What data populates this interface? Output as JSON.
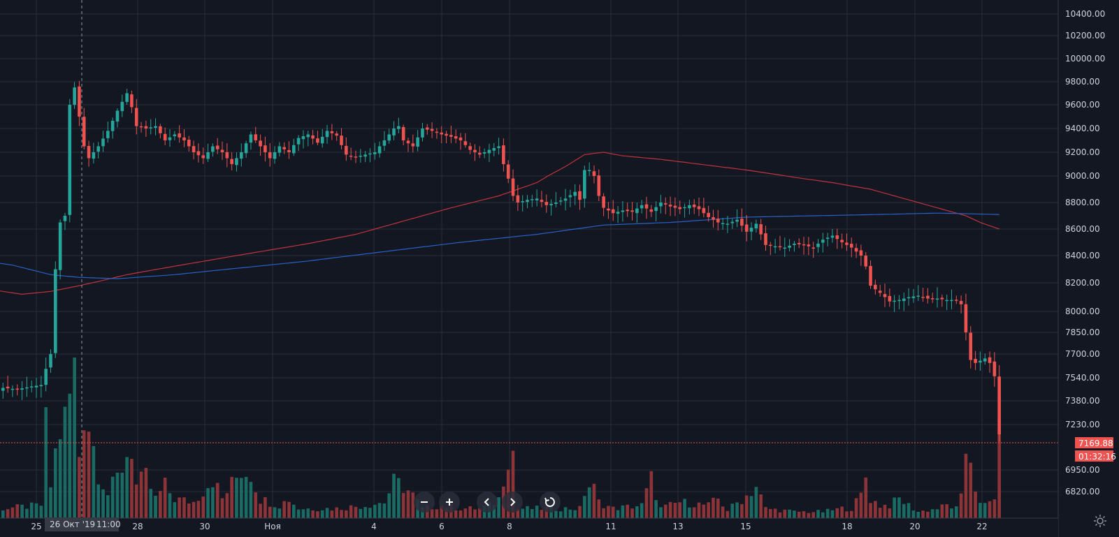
{
  "chart_data": {
    "type": "candlestick",
    "title": "",
    "ylim": [
      6770,
      10530
    ],
    "y_ticks": [
      "10400.00",
      "10200.00",
      "10000.00",
      "9800.00",
      "9600.00",
      "9400.00",
      "9200.00",
      "9000.00",
      "8800.00",
      "8600.00",
      "8400.00",
      "8200.00",
      "8000.00",
      "7850.00",
      "7700.00",
      "7540.00",
      "7380.00",
      "7230.00",
      "6950.00",
      "6820.00"
    ],
    "x_ticks": [
      "25",
      "28",
      "30",
      "Ноя",
      "4",
      "6",
      "8",
      "11",
      "13",
      "15",
      "18",
      "20",
      "22"
    ],
    "crosshair_label": "26 Окт '19",
    "crosshair_time": "11:00",
    "last_price": "7169.88",
    "countdown": "01:32:16",
    "colors": {
      "up": "#26a69a",
      "down": "#ef5350",
      "up_volume": "#1b6b65",
      "down_volume": "#8c3438",
      "ma_red": "#c2333c",
      "ma_blue": "#2962c8",
      "price_line": "#ef5350",
      "grid": "#2a2e39",
      "background": "#131722"
    },
    "price_anchors": [
      [
        0,
        7470
      ],
      [
        3,
        7460
      ],
      [
        6,
        7480
      ],
      [
        8,
        7490
      ],
      [
        9,
        7600
      ],
      [
        10,
        7700
      ],
      [
        11,
        8300
      ],
      [
        12,
        8650
      ],
      [
        13,
        8700
      ],
      [
        14,
        9600
      ],
      [
        15,
        9750
      ],
      [
        16,
        9500
      ],
      [
        17,
        9250
      ],
      [
        18,
        9150
      ],
      [
        19,
        9200
      ],
      [
        20,
        9250
      ],
      [
        22,
        9380
      ],
      [
        24,
        9550
      ],
      [
        26,
        9700
      ],
      [
        27,
        9580
      ],
      [
        28,
        9420
      ],
      [
        30,
        9400
      ],
      [
        32,
        9420
      ],
      [
        34,
        9300
      ],
      [
        36,
        9350
      ],
      [
        38,
        9300
      ],
      [
        40,
        9200
      ],
      [
        42,
        9150
      ],
      [
        44,
        9250
      ],
      [
        46,
        9200
      ],
      [
        48,
        9100
      ],
      [
        50,
        9200
      ],
      [
        52,
        9350
      ],
      [
        54,
        9250
      ],
      [
        56,
        9150
      ],
      [
        58,
        9250
      ],
      [
        60,
        9200
      ],
      [
        62,
        9320
      ],
      [
        64,
        9350
      ],
      [
        66,
        9280
      ],
      [
        68,
        9380
      ],
      [
        70,
        9340
      ],
      [
        72,
        9180
      ],
      [
        74,
        9160
      ],
      [
        76,
        9180
      ],
      [
        78,
        9200
      ],
      [
        80,
        9300
      ],
      [
        82,
        9400
      ],
      [
        83,
        9420
      ],
      [
        84,
        9300
      ],
      [
        86,
        9250
      ],
      [
        88,
        9400
      ],
      [
        90,
        9380
      ],
      [
        92,
        9350
      ],
      [
        94,
        9330
      ],
      [
        96,
        9300
      ],
      [
        98,
        9220
      ],
      [
        100,
        9180
      ],
      [
        102,
        9220
      ],
      [
        104,
        9250
      ],
      [
        105,
        9100
      ],
      [
        106,
        8980
      ],
      [
        107,
        8850
      ],
      [
        108,
        8800
      ],
      [
        110,
        8820
      ],
      [
        112,
        8830
      ],
      [
        114,
        8780
      ],
      [
        116,
        8800
      ],
      [
        118,
        8830
      ],
      [
        120,
        8880
      ],
      [
        121,
        8820
      ],
      [
        122,
        9050
      ],
      [
        123,
        9050
      ],
      [
        124,
        9000
      ],
      [
        125,
        8850
      ],
      [
        126,
        8760
      ],
      [
        128,
        8720
      ],
      [
        130,
        8740
      ],
      [
        132,
        8730
      ],
      [
        134,
        8780
      ],
      [
        136,
        8730
      ],
      [
        138,
        8800
      ],
      [
        140,
        8770
      ],
      [
        142,
        8750
      ],
      [
        144,
        8780
      ],
      [
        146,
        8750
      ],
      [
        148,
        8690
      ],
      [
        150,
        8650
      ],
      [
        152,
        8640
      ],
      [
        154,
        8670
      ],
      [
        156,
        8580
      ],
      [
        158,
        8640
      ],
      [
        160,
        8480
      ],
      [
        162,
        8470
      ],
      [
        164,
        8460
      ],
      [
        166,
        8490
      ],
      [
        168,
        8480
      ],
      [
        170,
        8460
      ],
      [
        172,
        8520
      ],
      [
        174,
        8550
      ],
      [
        176,
        8500
      ],
      [
        178,
        8460
      ],
      [
        180,
        8400
      ],
      [
        181,
        8320
      ],
      [
        182,
        8180
      ],
      [
        184,
        8130
      ],
      [
        186,
        8070
      ],
      [
        188,
        8080
      ],
      [
        190,
        8100
      ],
      [
        192,
        8110
      ],
      [
        194,
        8090
      ],
      [
        196,
        8090
      ],
      [
        198,
        8080
      ],
      [
        200,
        8080
      ],
      [
        201,
        8050
      ],
      [
        202,
        7850
      ],
      [
        203,
        7660
      ],
      [
        204,
        7640
      ],
      [
        206,
        7670
      ],
      [
        207,
        7640
      ],
      [
        208,
        7550
      ],
      [
        209,
        7170
      ]
    ],
    "volume_anchors": [
      [
        0,
        0.06
      ],
      [
        8,
        0.08
      ],
      [
        9,
        0.55
      ],
      [
        10,
        0.2
      ],
      [
        11,
        0.4
      ],
      [
        12,
        0.55
      ],
      [
        13,
        0.6
      ],
      [
        14,
        0.75
      ],
      [
        15,
        1.0
      ],
      [
        16,
        0.4
      ],
      [
        17,
        0.7
      ],
      [
        18,
        0.6
      ],
      [
        19,
        0.45
      ],
      [
        20,
        0.3
      ],
      [
        22,
        0.15
      ],
      [
        24,
        0.25
      ],
      [
        26,
        0.4
      ],
      [
        27,
        0.45
      ],
      [
        28,
        0.2
      ],
      [
        30,
        0.25
      ],
      [
        32,
        0.12
      ],
      [
        34,
        0.2
      ],
      [
        36,
        0.12
      ],
      [
        40,
        0.1
      ],
      [
        44,
        0.25
      ],
      [
        46,
        0.12
      ],
      [
        50,
        0.3
      ],
      [
        52,
        0.28
      ],
      [
        54,
        0.12
      ],
      [
        58,
        0.08
      ],
      [
        60,
        0.12
      ],
      [
        62,
        0.06
      ],
      [
        70,
        0.06
      ],
      [
        76,
        0.08
      ],
      [
        80,
        0.1
      ],
      [
        82,
        0.22
      ],
      [
        84,
        0.2
      ],
      [
        86,
        0.14
      ],
      [
        88,
        0.06
      ],
      [
        92,
        0.08
      ],
      [
        96,
        0.06
      ],
      [
        100,
        0.06
      ],
      [
        102,
        0.08
      ],
      [
        104,
        0.12
      ],
      [
        106,
        0.42
      ],
      [
        107,
        0.42
      ],
      [
        108,
        0.06
      ],
      [
        112,
        0.06
      ],
      [
        118,
        0.06
      ],
      [
        121,
        0.06
      ],
      [
        122,
        0.16
      ],
      [
        123,
        0.2
      ],
      [
        124,
        0.18
      ],
      [
        125,
        0.1
      ],
      [
        128,
        0.06
      ],
      [
        134,
        0.08
      ],
      [
        136,
        0.24
      ],
      [
        138,
        0.06
      ],
      [
        142,
        0.1
      ],
      [
        148,
        0.08
      ],
      [
        150,
        0.12
      ],
      [
        152,
        0.05
      ],
      [
        156,
        0.14
      ],
      [
        158,
        0.2
      ],
      [
        160,
        0.06
      ],
      [
        166,
        0.04
      ],
      [
        172,
        0.04
      ],
      [
        176,
        0.06
      ],
      [
        178,
        0.06
      ],
      [
        180,
        0.14
      ],
      [
        181,
        0.26
      ],
      [
        182,
        0.12
      ],
      [
        184,
        0.08
      ],
      [
        186,
        0.08
      ],
      [
        188,
        0.12
      ],
      [
        190,
        0.08
      ],
      [
        192,
        0.04
      ],
      [
        196,
        0.06
      ],
      [
        198,
        0.08
      ],
      [
        200,
        0.06
      ],
      [
        201,
        0.12
      ],
      [
        202,
        0.42
      ],
      [
        203,
        0.4
      ],
      [
        204,
        0.2
      ],
      [
        205,
        0.08
      ],
      [
        206,
        0.08
      ],
      [
        207,
        0.1
      ],
      [
        208,
        0.14
      ],
      [
        209,
        0.42
      ]
    ],
    "ma_red_anchors": [
      [
        -8,
        8190
      ],
      [
        -2,
        8150
      ],
      [
        4,
        8120
      ],
      [
        10,
        8140
      ],
      [
        16,
        8180
      ],
      [
        20,
        8210
      ],
      [
        26,
        8260
      ],
      [
        34,
        8310
      ],
      [
        44,
        8370
      ],
      [
        54,
        8430
      ],
      [
        64,
        8490
      ],
      [
        74,
        8560
      ],
      [
        84,
        8660
      ],
      [
        94,
        8760
      ],
      [
        104,
        8850
      ],
      [
        112,
        8950
      ],
      [
        118,
        9080
      ],
      [
        122,
        9180
      ],
      [
        126,
        9200
      ],
      [
        130,
        9170
      ],
      [
        138,
        9140
      ],
      [
        146,
        9100
      ],
      [
        156,
        9050
      ],
      [
        166,
        8990
      ],
      [
        174,
        8950
      ],
      [
        182,
        8900
      ],
      [
        190,
        8820
      ],
      [
        196,
        8760
      ],
      [
        202,
        8700
      ],
      [
        205,
        8650
      ],
      [
        209,
        8600
      ]
    ],
    "ma_blue_anchors": [
      [
        -8,
        8380
      ],
      [
        2,
        8330
      ],
      [
        10,
        8260
      ],
      [
        16,
        8240
      ],
      [
        24,
        8230
      ],
      [
        36,
        8260
      ],
      [
        50,
        8310
      ],
      [
        64,
        8360
      ],
      [
        80,
        8430
      ],
      [
        96,
        8500
      ],
      [
        112,
        8560
      ],
      [
        126,
        8630
      ],
      [
        140,
        8650
      ],
      [
        156,
        8690
      ],
      [
        170,
        8700
      ],
      [
        184,
        8710
      ],
      [
        196,
        8720
      ],
      [
        209,
        8710
      ]
    ]
  }
}
